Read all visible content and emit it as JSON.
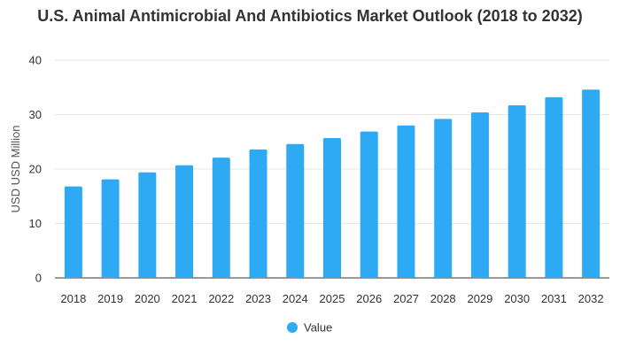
{
  "chart_data": {
    "type": "bar",
    "title": "U.S. Animal Antimicrobial And Antibiotics Market Outlook (2018 to 2032)",
    "xlabel": "",
    "ylabel": "USD USD Million",
    "ylim": [
      0,
      40
    ],
    "yticks": [
      0,
      10,
      20,
      30,
      40
    ],
    "grid": true,
    "legend_position": "bottom",
    "categories": [
      "2018",
      "2019",
      "2020",
      "2021",
      "2022",
      "2023",
      "2024",
      "2025",
      "2026",
      "2027",
      "2028",
      "2029",
      "2030",
      "2031",
      "2032"
    ],
    "series": [
      {
        "name": "Value",
        "color": "#2eaaf5",
        "values": [
          16.8,
          18.1,
          19.4,
          20.7,
          22.1,
          23.6,
          24.6,
          25.7,
          26.9,
          28.0,
          29.2,
          30.4,
          31.7,
          33.2,
          34.6
        ]
      }
    ]
  }
}
